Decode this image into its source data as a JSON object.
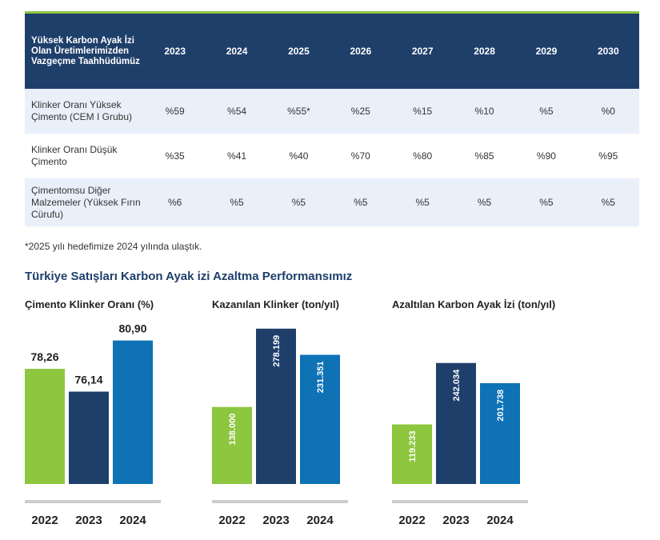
{
  "table": {
    "header_label": "Yüksek Karbon Ayak İzi Olan Üretimlerimizden Vazgeçme Taahhüdümüz",
    "years": [
      "2023",
      "2024",
      "2025",
      "2026",
      "2027",
      "2028",
      "2029",
      "2030"
    ],
    "rows": [
      {
        "label": "Klinker Oranı Yüksek Çimento (CEM I Grubu)",
        "values": [
          "%59",
          "%54",
          "%55*",
          "%25",
          "%15",
          "%10",
          "%5",
          "%0"
        ]
      },
      {
        "label": "Klinker Oranı Düşük Çimento",
        "values": [
          "%35",
          "%41",
          "%40",
          "%70",
          "%80",
          "%85",
          "%90",
          "%95"
        ]
      },
      {
        "label": "Çimentomsu Diğer Malzemeler (Yüksek Fırın Cürufu)",
        "values": [
          "%6",
          "%5",
          "%5",
          "%5",
          "%5",
          "%5",
          "%5",
          "%5"
        ]
      }
    ]
  },
  "footnote": "*2025 yılı hedefimize 2024 yılında ulaştık.",
  "section_title": "Türkiye Satışları Karbon Ayak izi Azaltma Performansımız",
  "colors": {
    "green": "#8dc63f",
    "navy": "#1f3f6b",
    "blue": "#0e72b5",
    "baseline": "#cccccc"
  },
  "chart_data": [
    {
      "type": "bar",
      "title": "Çimento Klinker Oranı (%)",
      "categories": [
        "2022",
        "2023",
        "2024"
      ],
      "values": [
        78.26,
        76.14,
        80.9
      ],
      "labels": [
        "78,26",
        "76,14",
        "80,90"
      ],
      "label_position": "above"
    },
    {
      "type": "bar",
      "title": "Kazanılan Klinker (ton/yıl)",
      "categories": [
        "2022",
        "2023",
        "2024"
      ],
      "values": [
        138000,
        278199,
        231351
      ],
      "labels": [
        "138.000",
        "278.199",
        "231.351"
      ],
      "label_position": "inside-vertical"
    },
    {
      "type": "bar",
      "title": "Azaltılan Karbon Ayak İzi (ton/yıl)",
      "categories": [
        "2022",
        "2023",
        "2024"
      ],
      "values": [
        119233,
        242034,
        201738
      ],
      "labels": [
        "119.233",
        "242.034",
        "201.738"
      ],
      "label_position": "inside-vertical"
    }
  ]
}
